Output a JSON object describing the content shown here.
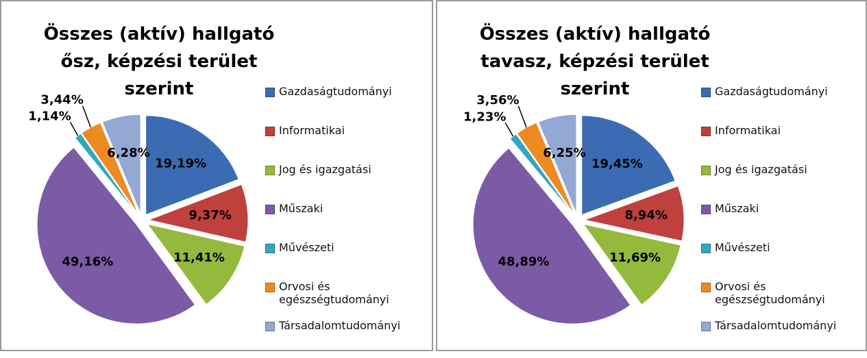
{
  "chart_data": [
    {
      "type": "pie",
      "title": "Összes (aktív) hallgató ősz, képzési terület szerint",
      "categories": [
        "Gazdaságtudományi",
        "Informatikai",
        "Jog és igazgatási",
        "Műszaki",
        "Művészeti",
        "Orvosi és egészségtudományi",
        "Társadalomtudományi"
      ],
      "values": [
        19.19,
        9.37,
        11.41,
        49.16,
        1.14,
        3.44,
        6.28
      ],
      "value_labels": [
        "19,19%",
        "9,37%",
        "11,41%",
        "49,16%",
        "1,14%",
        "3,44%",
        "6,28%"
      ],
      "colors": [
        "#3b6cb3",
        "#c0403d",
        "#95b93d",
        "#7b5ba6",
        "#33a7c2",
        "#ee8a22",
        "#93a9d4"
      ],
      "legend": "right"
    },
    {
      "type": "pie",
      "title": "Összes (aktív) hallgató tavasz, képzési terület szerint",
      "categories": [
        "Gazdaságtudományi",
        "Informatikai",
        "Jog és igazgatási",
        "Műszaki",
        "Művészeti",
        "Orvosi és egészségtudományi",
        "Társadalomtudományi"
      ],
      "values": [
        19.45,
        8.94,
        11.69,
        48.89,
        1.23,
        3.56,
        6.25
      ],
      "value_labels": [
        "19,45%",
        "8,94%",
        "11,69%",
        "48,89%",
        "1,23%",
        "3,56%",
        "6,25%"
      ],
      "colors": [
        "#3b6cb3",
        "#c0403d",
        "#95b93d",
        "#7b5ba6",
        "#33a7c2",
        "#ee8a22",
        "#93a9d4"
      ],
      "legend": "right"
    }
  ]
}
